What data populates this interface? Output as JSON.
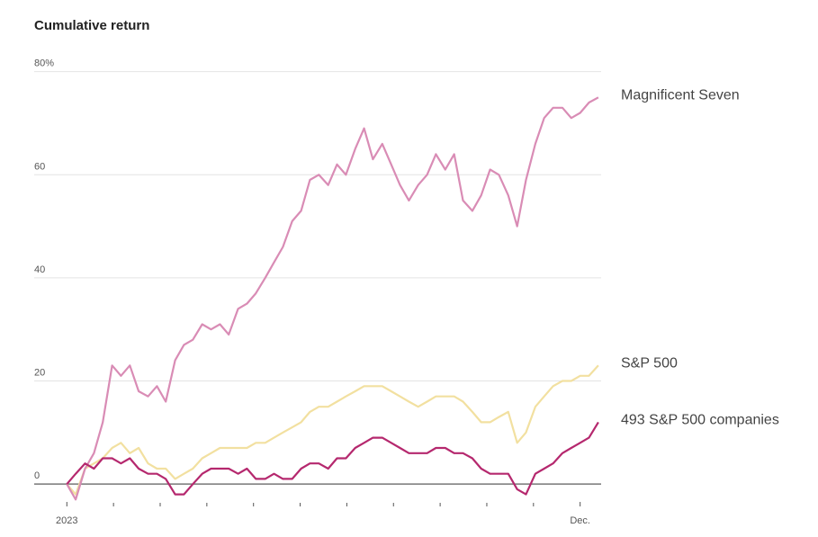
{
  "chart_data": {
    "type": "line",
    "title": "Cumulative return",
    "x": [
      0,
      0.19,
      0.39,
      0.58,
      0.77,
      0.97,
      1.16,
      1.35,
      1.54,
      1.74,
      1.93,
      2.12,
      2.32,
      2.51,
      2.7,
      2.9,
      3.09,
      3.28,
      3.47,
      3.67,
      3.86,
      4.05,
      4.25,
      4.44,
      4.63,
      4.83,
      5.02,
      5.21,
      5.4,
      5.6,
      5.79,
      5.98,
      6.18,
      6.37,
      6.56,
      6.76,
      6.95,
      7.14,
      7.33,
      7.53,
      7.72,
      7.91,
      8.11,
      8.3,
      8.49,
      8.69,
      8.88,
      9.07,
      9.26,
      9.46,
      9.65,
      9.84,
      10.04,
      10.23,
      10.42,
      10.62,
      10.81,
      11.0,
      11.19,
      11.39
    ],
    "series": [
      {
        "name": "Magnificent Seven",
        "color": "#d98cb5",
        "values": [
          0,
          -3,
          3,
          6,
          12,
          23,
          21,
          23,
          18,
          17,
          19,
          16,
          24,
          27,
          28,
          31,
          30,
          31,
          29,
          34,
          35,
          37,
          40,
          43,
          46,
          51,
          53,
          59,
          60,
          58,
          62,
          60,
          65,
          69,
          63,
          66,
          62,
          58,
          55,
          58,
          60,
          64,
          61,
          64,
          55,
          53,
          56,
          61,
          60,
          56,
          50,
          59,
          66,
          71,
          73,
          73,
          71,
          72,
          74,
          75
        ]
      },
      {
        "name": "S&P 500",
        "color": "#f2e0a0",
        "values": [
          0,
          -2,
          3,
          4,
          5,
          7,
          8,
          6,
          7,
          4,
          3,
          3,
          1,
          2,
          3,
          5,
          6,
          7,
          7,
          7,
          7,
          8,
          8,
          9,
          10,
          11,
          12,
          14,
          15,
          15,
          16,
          17,
          18,
          19,
          19,
          19,
          18,
          17,
          16,
          15,
          16,
          17,
          17,
          17,
          16,
          14,
          12,
          12,
          13,
          14,
          8,
          10,
          15,
          17,
          19,
          20,
          20,
          21,
          21,
          23
        ]
      },
      {
        "name": "493 S&P 500 companies",
        "color": "#b5286e",
        "values": [
          0,
          2,
          4,
          3,
          5,
          5,
          4,
          5,
          3,
          2,
          2,
          1,
          -2,
          -2,
          0,
          2,
          3,
          3,
          3,
          2,
          3,
          1,
          1,
          2,
          1,
          1,
          3,
          4,
          4,
          3,
          5,
          5,
          7,
          8,
          9,
          9,
          8,
          7,
          6,
          6,
          6,
          7,
          7,
          6,
          6,
          5,
          3,
          2,
          2,
          2,
          -1,
          -2,
          2,
          3,
          4,
          6,
          7,
          8,
          9,
          12
        ]
      }
    ],
    "xlim": [
      -0.7,
      11.45
    ],
    "xticks": [
      {
        "value": 0,
        "label": "2023"
      },
      {
        "value": 11,
        "label": "Dec."
      }
    ],
    "xminorticks": [
      1,
      2,
      3,
      4,
      5,
      6,
      7,
      8,
      9,
      10
    ],
    "ylim": [
      -8,
      85
    ],
    "yticks": [
      0,
      20,
      40,
      60,
      {
        "value": 80,
        "label": "80%"
      }
    ],
    "grid": true
  }
}
